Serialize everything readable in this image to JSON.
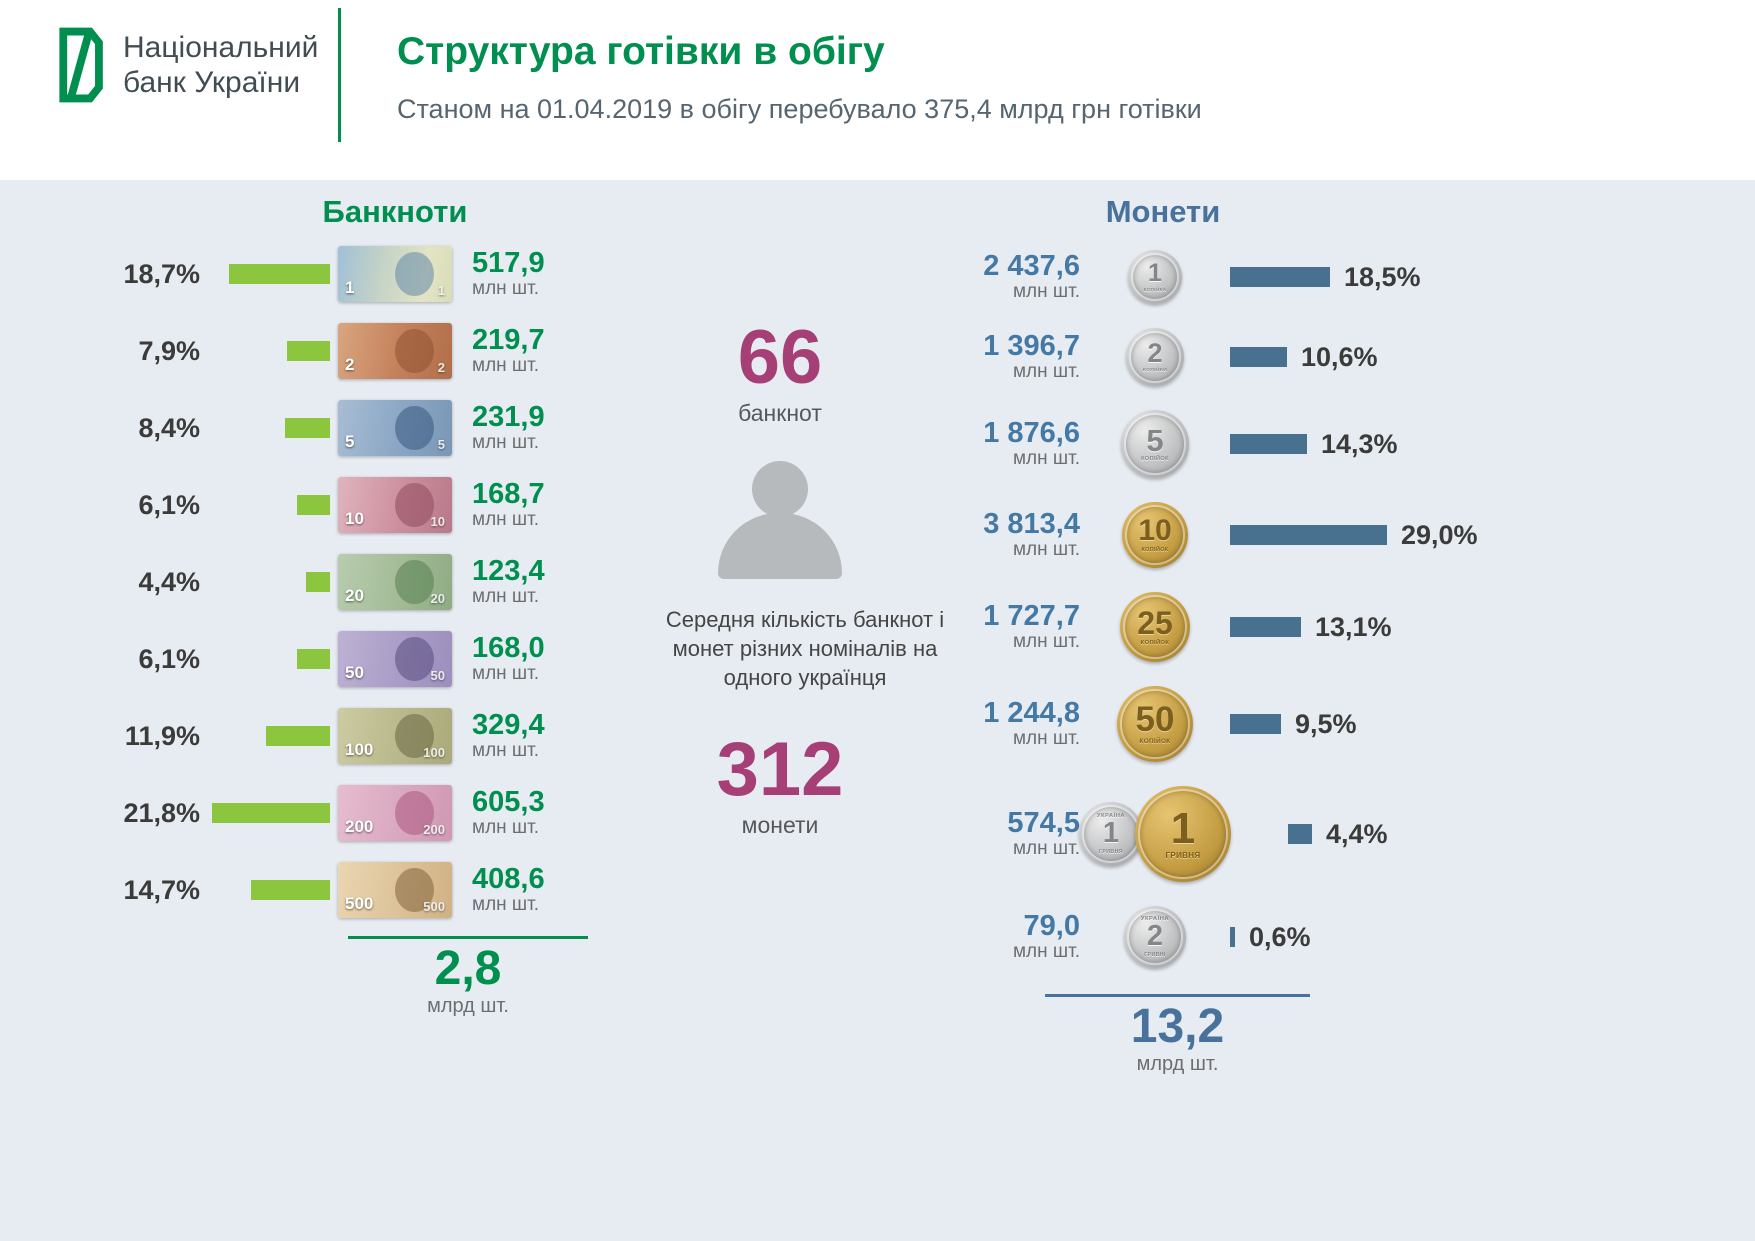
{
  "header": {
    "logo": {
      "line1": "Національний",
      "line2": "банк України"
    },
    "title": "Структура готівки в обігу",
    "subtitle": "Станом на 01.04.2019 в обігу перебувало 375,4 млрд грн готівки"
  },
  "colors": {
    "brand_green": "#008f4f",
    "bar_green": "#8cc63e",
    "coin_blue": "#48719b",
    "bar_blue": "#48708f",
    "accent_magenta": "#a53f76",
    "panel_background": "#e7ecf2"
  },
  "banknotes": {
    "title": "Банкноти",
    "unit": "млн шт.",
    "items": [
      {
        "denom": "1",
        "percent": "18,7%",
        "pct": 18.7,
        "count": "517,9"
      },
      {
        "denom": "2",
        "percent": "7,9%",
        "pct": 7.9,
        "count": "219,7"
      },
      {
        "denom": "5",
        "percent": "8,4%",
        "pct": 8.4,
        "count": "231,9"
      },
      {
        "denom": "10",
        "percent": "6,1%",
        "pct": 6.1,
        "count": "168,7"
      },
      {
        "denom": "20",
        "percent": "4,4%",
        "pct": 4.4,
        "count": "123,4"
      },
      {
        "denom": "50",
        "percent": "6,1%",
        "pct": 6.1,
        "count": "168,0"
      },
      {
        "denom": "100",
        "percent": "11,9%",
        "pct": 11.9,
        "count": "329,4"
      },
      {
        "denom": "200",
        "percent": "21,8%",
        "pct": 21.8,
        "count": "605,3"
      },
      {
        "denom": "500",
        "percent": "14,7%",
        "pct": 14.7,
        "count": "408,6"
      }
    ],
    "total": {
      "value": "2,8",
      "unit": "млрд шт."
    }
  },
  "center": {
    "banknotes_value": "66",
    "banknotes_label": "банкнот",
    "caption": "Середня кількість банкнот і монет різних номіналів на одного українця",
    "coins_value": "312",
    "coins_label": "монети"
  },
  "coins": {
    "title": "Монети",
    "unit": "млн шт.",
    "items": [
      {
        "denom": "1",
        "count": "2 437,6",
        "percent": "18,5%",
        "pct": 18.5,
        "metal": "silver",
        "size": 54,
        "sub": "копійка"
      },
      {
        "denom": "2",
        "count": "1 396,7",
        "percent": "10,6%",
        "pct": 10.6,
        "metal": "silver",
        "size": 58,
        "sub": "копійки"
      },
      {
        "denom": "5",
        "count": "1 876,6",
        "percent": "14,3%",
        "pct": 14.3,
        "metal": "silver",
        "size": 68,
        "sub": "копійок"
      },
      {
        "denom": "10",
        "count": "3 813,4",
        "percent": "29,0%",
        "pct": 29.0,
        "metal": "gold",
        "size": 66,
        "sub": "копійок"
      },
      {
        "denom": "25",
        "count": "1 727,7",
        "percent": "13,1%",
        "pct": 13.1,
        "metal": "gold",
        "size": 70,
        "sub": "копійок"
      },
      {
        "denom": "50",
        "count": "1 244,8",
        "percent": "9,5%",
        "pct": 9.5,
        "metal": "gold",
        "size": 76,
        "sub": "копійок"
      },
      {
        "denom": "1",
        "count": "574,5",
        "percent": "4,4%",
        "pct": 4.4,
        "metal": "dual",
        "size": 96,
        "top": "УКРАЇНА",
        "sub": "ГРИВНЯ"
      },
      {
        "denom": "2",
        "count": "79,0",
        "percent": "0,6%",
        "pct": 0.6,
        "metal": "silver",
        "size": 62,
        "top": "УКРАЇНА",
        "sub": "гривні"
      }
    ],
    "total": {
      "value": "13,2",
      "unit": "млрд шт."
    }
  },
  "chart_data": [
    {
      "type": "bar",
      "title": "Банкноти",
      "categories": [
        "1",
        "2",
        "5",
        "10",
        "20",
        "50",
        "100",
        "200",
        "500"
      ],
      "series": [
        {
          "name": "частка, %",
          "values": [
            18.7,
            7.9,
            8.4,
            6.1,
            4.4,
            6.1,
            11.9,
            21.8,
            14.7
          ]
        },
        {
          "name": "кількість, млн шт.",
          "values": [
            517.9,
            219.7,
            231.9,
            168.7,
            123.4,
            168.0,
            329.4,
            605.3,
            408.6
          ]
        }
      ],
      "total": "2,8 млрд шт.",
      "legend_position": "none",
      "grid": false
    },
    {
      "type": "bar",
      "title": "Монети",
      "categories": [
        "1 коп",
        "2 коп",
        "5 коп",
        "10 коп",
        "25 коп",
        "50 коп",
        "1 грн",
        "2 грн"
      ],
      "series": [
        {
          "name": "частка, %",
          "values": [
            18.5,
            10.6,
            14.3,
            29.0,
            13.1,
            9.5,
            4.4,
            0.6
          ]
        },
        {
          "name": "кількість, млн шт.",
          "values": [
            2437.6,
            1396.7,
            1876.6,
            3813.4,
            1727.7,
            1244.8,
            574.5,
            79.0
          ]
        }
      ],
      "total": "13,2 млрд шт.",
      "legend_position": "none",
      "grid": false
    }
  ]
}
